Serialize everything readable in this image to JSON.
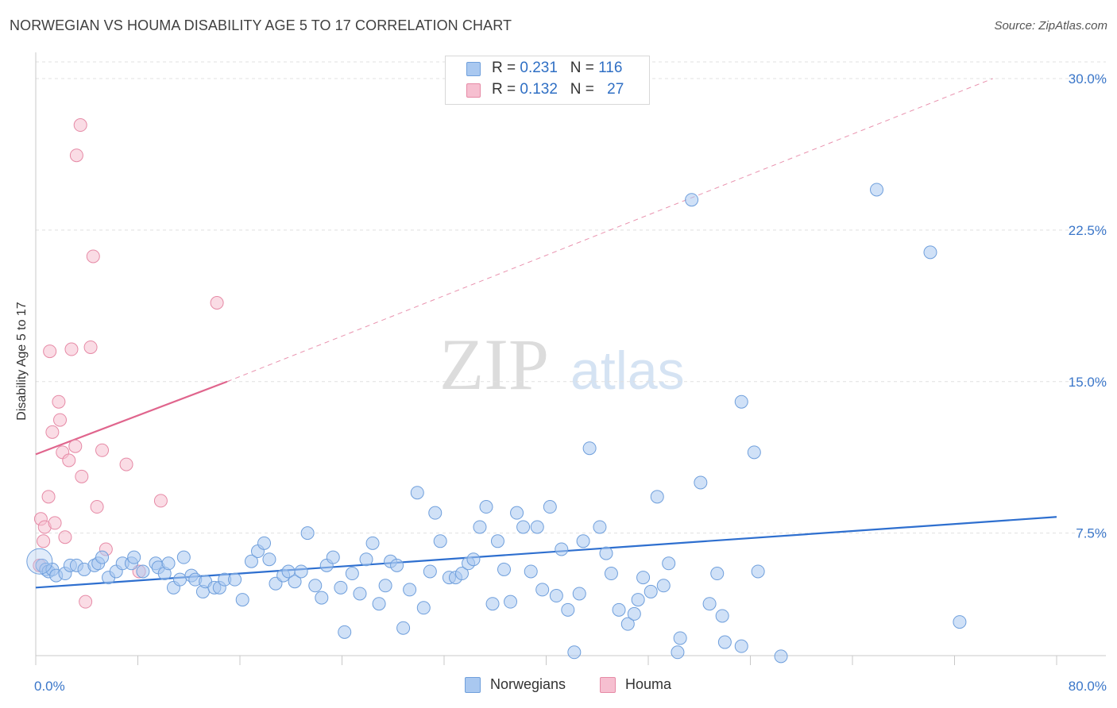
{
  "header": {
    "title": "NORWEGIAN VS HOUMA DISABILITY AGE 5 TO 17 CORRELATION CHART",
    "source": "Source: ZipAtlas.com"
  },
  "legend_top": {
    "rows": [
      {
        "r_label": "R = ",
        "r_value": "0.231",
        "n_label": "N = ",
        "n_value": "116"
      },
      {
        "r_label": "R = ",
        "r_value": "0.132",
        "n_label": "N = ",
        "n_value": "27"
      }
    ]
  },
  "legend_bottom": {
    "items": [
      {
        "label": "Norwegians"
      },
      {
        "label": "Houma"
      }
    ]
  },
  "watermark": {
    "part1": "ZIP",
    "part2": "atlas"
  },
  "colors": {
    "blue_fill": "#a9c8f0",
    "blue_stroke": "#6f9fdc",
    "blue_line": "#2e6fcf",
    "pink_fill": "#f6bfd0",
    "pink_stroke": "#e68aa6",
    "pink_line": "#e0658d",
    "tick_label": "#3a76c9",
    "grid": "#e0e0e0"
  },
  "chart_data": {
    "type": "scatter",
    "title": "NORWEGIAN VS HOUMA DISABILITY AGE 5 TO 17 CORRELATION CHART",
    "xlabel": "",
    "ylabel": "Disability Age 5 to 17",
    "xlim": [
      0,
      80
    ],
    "ylim": [
      0,
      31
    ],
    "x_tick_labels": [
      "0.0%",
      "80.0%"
    ],
    "y_ticks": [
      7.5,
      15.0,
      22.5,
      30.0
    ],
    "y_tick_labels": [
      "7.5%",
      "15.0%",
      "22.5%",
      "30.0%"
    ],
    "grid": "horizontal dashed",
    "legend_position": "top-center",
    "series": [
      {
        "name": "Norwegians",
        "r": 0.231,
        "n": 116,
        "trend": [
          [
            0,
            4.8
          ],
          [
            80,
            8.3
          ]
        ],
        "points": [
          [
            0.5,
            5.9
          ],
          [
            0.8,
            5.7
          ],
          [
            1.0,
            5.6
          ],
          [
            1.3,
            5.7
          ],
          [
            1.6,
            5.4
          ],
          [
            2.3,
            5.5
          ],
          [
            2.7,
            5.9
          ],
          [
            3.2,
            5.9
          ],
          [
            3.8,
            5.7
          ],
          [
            4.6,
            5.9
          ],
          [
            4.9,
            6.0
          ],
          [
            5.2,
            6.3
          ],
          [
            5.7,
            5.3
          ],
          [
            6.3,
            5.6
          ],
          [
            6.8,
            6.0
          ],
          [
            7.5,
            6.0
          ],
          [
            7.7,
            6.3
          ],
          [
            8.4,
            5.6
          ],
          [
            9.4,
            6.0
          ],
          [
            9.6,
            5.8
          ],
          [
            10.1,
            5.5
          ],
          [
            10.4,
            6.0
          ],
          [
            10.8,
            4.8
          ],
          [
            11.3,
            5.2
          ],
          [
            11.6,
            6.3
          ],
          [
            12.2,
            5.4
          ],
          [
            12.5,
            5.2
          ],
          [
            13.1,
            4.6
          ],
          [
            13.3,
            5.1
          ],
          [
            14.0,
            4.8
          ],
          [
            14.4,
            4.8
          ],
          [
            14.8,
            5.2
          ],
          [
            15.6,
            5.2
          ],
          [
            16.2,
            4.2
          ],
          [
            16.9,
            6.1
          ],
          [
            17.4,
            6.6
          ],
          [
            17.9,
            7.0
          ],
          [
            18.3,
            6.2
          ],
          [
            18.8,
            5.0
          ],
          [
            19.4,
            5.4
          ],
          [
            19.8,
            5.6
          ],
          [
            20.3,
            5.1
          ],
          [
            20.8,
            5.6
          ],
          [
            21.3,
            7.5
          ],
          [
            21.9,
            4.9
          ],
          [
            22.4,
            4.3
          ],
          [
            22.8,
            5.9
          ],
          [
            23.3,
            6.3
          ],
          [
            23.9,
            4.8
          ],
          [
            24.2,
            2.6
          ],
          [
            24.8,
            5.5
          ],
          [
            25.4,
            4.5
          ],
          [
            25.9,
            6.2
          ],
          [
            26.4,
            7.0
          ],
          [
            26.9,
            4.0
          ],
          [
            27.4,
            4.9
          ],
          [
            27.8,
            6.1
          ],
          [
            28.3,
            5.9
          ],
          [
            28.8,
            2.8
          ],
          [
            29.3,
            4.7
          ],
          [
            29.9,
            9.5
          ],
          [
            30.4,
            3.8
          ],
          [
            30.9,
            5.6
          ],
          [
            31.3,
            8.5
          ],
          [
            31.7,
            7.1
          ],
          [
            32.4,
            5.3
          ],
          [
            32.9,
            5.3
          ],
          [
            33.4,
            5.5
          ],
          [
            33.9,
            6.0
          ],
          [
            34.3,
            6.2
          ],
          [
            34.8,
            7.8
          ],
          [
            35.3,
            8.8
          ],
          [
            35.8,
            4.0
          ],
          [
            36.2,
            7.1
          ],
          [
            36.7,
            5.7
          ],
          [
            37.2,
            4.1
          ],
          [
            37.7,
            8.5
          ],
          [
            38.2,
            7.8
          ],
          [
            38.8,
            5.6
          ],
          [
            39.3,
            7.8
          ],
          [
            39.7,
            4.7
          ],
          [
            40.3,
            8.8
          ],
          [
            40.8,
            4.4
          ],
          [
            41.2,
            6.7
          ],
          [
            41.7,
            3.7
          ],
          [
            42.2,
            1.6
          ],
          [
            42.6,
            4.5
          ],
          [
            42.9,
            7.1
          ],
          [
            43.4,
            11.7
          ],
          [
            44.2,
            7.8
          ],
          [
            44.7,
            6.5
          ],
          [
            45.1,
            5.5
          ],
          [
            45.7,
            3.7
          ],
          [
            46.4,
            3.0
          ],
          [
            46.9,
            3.5
          ],
          [
            47.2,
            4.2
          ],
          [
            47.6,
            5.3
          ],
          [
            48.2,
            4.6
          ],
          [
            48.7,
            9.3
          ],
          [
            49.2,
            4.9
          ],
          [
            49.6,
            6.0
          ],
          [
            50.3,
            1.6
          ],
          [
            50.5,
            2.3
          ],
          [
            51.4,
            24.0
          ],
          [
            52.1,
            10.0
          ],
          [
            52.8,
            4.0
          ],
          [
            53.4,
            5.5
          ],
          [
            53.8,
            3.4
          ],
          [
            54.0,
            2.1
          ],
          [
            55.3,
            1.9
          ],
          [
            55.3,
            14.0
          ],
          [
            56.3,
            11.5
          ],
          [
            56.6,
            5.6
          ],
          [
            58.4,
            1.4
          ],
          [
            65.9,
            24.5
          ],
          [
            70.1,
            21.4
          ],
          [
            72.4,
            3.1
          ]
        ]
      },
      {
        "name": "Houma",
        "r": 0.132,
        "n": 27,
        "trend": [
          [
            0,
            11.4
          ],
          [
            15,
            15.0
          ]
        ],
        "trend_extension": [
          [
            15,
            15.0
          ],
          [
            75,
            30.0
          ]
        ],
        "points": [
          [
            0.3,
            5.9
          ],
          [
            0.4,
            8.2
          ],
          [
            0.6,
            7.1
          ],
          [
            0.7,
            7.8
          ],
          [
            1.0,
            9.3
          ],
          [
            1.1,
            16.5
          ],
          [
            1.3,
            12.5
          ],
          [
            1.5,
            8.0
          ],
          [
            1.8,
            14.0
          ],
          [
            1.9,
            13.1
          ],
          [
            2.1,
            11.5
          ],
          [
            2.3,
            7.3
          ],
          [
            2.6,
            11.1
          ],
          [
            2.8,
            16.6
          ],
          [
            3.1,
            11.8
          ],
          [
            3.2,
            26.2
          ],
          [
            3.5,
            27.7
          ],
          [
            3.6,
            10.3
          ],
          [
            3.9,
            4.1
          ],
          [
            4.3,
            16.7
          ],
          [
            4.5,
            21.2
          ],
          [
            4.8,
            8.8
          ],
          [
            5.2,
            11.6
          ],
          [
            5.5,
            6.7
          ],
          [
            7.1,
            10.9
          ],
          [
            8.1,
            5.6
          ],
          [
            9.8,
            9.1
          ],
          [
            14.2,
            18.9
          ]
        ]
      }
    ]
  }
}
